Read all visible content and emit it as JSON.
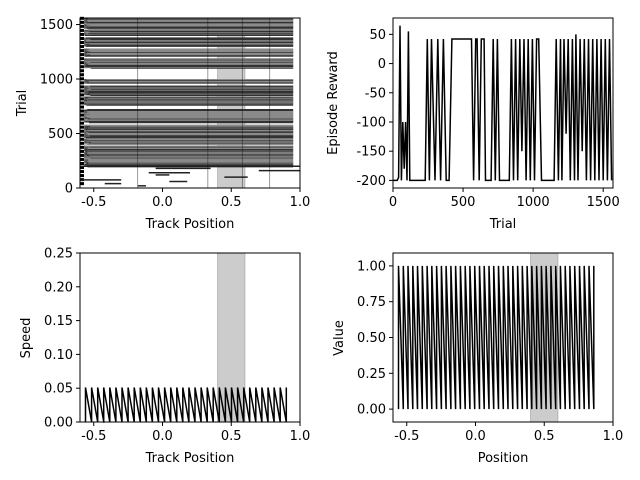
{
  "chart_data": [
    {
      "id": "trial-raster",
      "type": "heatmap",
      "xlabel": "Track Position",
      "ylabel": "Trial",
      "xlim": [
        -0.6,
        1.0
      ],
      "ylim": [
        0,
        1560
      ],
      "xticks": [
        "-0.5",
        "0.0",
        "0.5",
        "1.0"
      ],
      "xtick_values": [
        -0.5,
        0.0,
        0.5,
        1.0
      ],
      "yticks": [
        "0",
        "500",
        "1000",
        "1500"
      ],
      "ytick_values": [
        0,
        500,
        1000,
        1500
      ],
      "shaded_region": [
        0.4,
        0.6
      ],
      "grid": false,
      "dense_bands": [
        [
          195,
          225
        ],
        [
          230,
          265
        ],
        [
          270,
          330
        ],
        [
          335,
          390
        ],
        [
          400,
          450
        ],
        [
          455,
          580
        ],
        [
          600,
          720
        ],
        [
          760,
          840
        ],
        [
          850,
          940
        ],
        [
          960,
          1000
        ],
        [
          1100,
          1190
        ],
        [
          1210,
          1280
        ],
        [
          1300,
          1380
        ],
        [
          1400,
          1450
        ],
        [
          1460,
          1560
        ]
      ],
      "partial_trials": [
        {
          "trial": 20,
          "x": [
            -0.18,
            -0.12
          ]
        },
        {
          "trial": 40,
          "x": [
            -0.42,
            -0.3
          ]
        },
        {
          "trial": 60,
          "x": [
            0.05,
            0.18
          ]
        },
        {
          "trial": 75,
          "x": [
            -0.6,
            -0.3
          ]
        },
        {
          "trial": 100,
          "x": [
            0.45,
            0.62
          ]
        },
        {
          "trial": 120,
          "x": [
            -0.05,
            0.05
          ]
        },
        {
          "trial": 140,
          "x": [
            -0.1,
            0.2
          ]
        },
        {
          "trial": 160,
          "x": [
            0.7,
            1.0
          ]
        },
        {
          "trial": 180,
          "x": [
            -0.05,
            0.35
          ]
        },
        {
          "trial": 200,
          "x": [
            -0.6,
            1.0
          ]
        }
      ]
    },
    {
      "id": "episode-reward",
      "type": "line",
      "xlabel": "Trial",
      "ylabel": "Episode Reward",
      "xlim": [
        0,
        1570
      ],
      "ylim": [
        -213,
        78
      ],
      "xticks": [
        "0",
        "500",
        "1000",
        "1500"
      ],
      "xtick_values": [
        0,
        500,
        1000,
        1500
      ],
      "yticks": [
        "-200",
        "-150",
        "-100",
        "-50",
        "0",
        "50"
      ],
      "ytick_values": [
        -200,
        -150,
        -100,
        -50,
        0,
        50
      ],
      "grid": false,
      "series": [
        {
          "x": [
            0,
            30,
            40,
            50,
            60,
            70,
            80,
            90,
            100,
            110,
            120,
            130,
            160,
            180,
            200,
            230,
            245,
            260,
            275,
            300,
            320,
            340,
            360,
            380,
            400,
            420,
            440,
            560,
            575,
            590,
            600,
            615,
            630,
            650,
            660,
            700,
            715,
            730,
            745,
            760,
            830,
            845,
            860,
            875,
            890,
            905,
            920,
            935,
            950,
            965,
            980,
            995,
            1010,
            1025,
            1040,
            1060,
            1150,
            1165,
            1180,
            1195,
            1205,
            1220,
            1235,
            1250,
            1265,
            1280,
            1295,
            1305,
            1320,
            1335,
            1350,
            1365,
            1380,
            1395,
            1410,
            1425,
            1440,
            1455,
            1470,
            1485,
            1500,
            1515,
            1530,
            1545,
            1560
          ],
          "y": [
            -200,
            -200,
            -195,
            65,
            -200,
            -100,
            -180,
            -100,
            -200,
            55,
            -200,
            -200,
            -200,
            -200,
            -200,
            -200,
            42,
            -200,
            42,
            -200,
            42,
            -200,
            42,
            -200,
            -200,
            42,
            42,
            42,
            -200,
            42,
            42,
            -200,
            42,
            42,
            -200,
            -200,
            42,
            -200,
            42,
            -200,
            -200,
            42,
            -200,
            42,
            -200,
            42,
            -150,
            42,
            -200,
            42,
            -200,
            42,
            -200,
            42,
            42,
            -200,
            -200,
            42,
            -200,
            42,
            -200,
            42,
            -120,
            42,
            -200,
            42,
            -200,
            50,
            -200,
            42,
            -150,
            42,
            -200,
            42,
            -200,
            42,
            -200,
            42,
            -200,
            42,
            -200,
            42,
            -200,
            42,
            -200
          ]
        }
      ]
    },
    {
      "id": "speed",
      "type": "line",
      "xlabel": "Track Position",
      "ylabel": "Speed",
      "xlim": [
        -0.6,
        1.0
      ],
      "ylim": [
        0.0,
        0.25
      ],
      "xticks": [
        "-0.5",
        "0.0",
        "0.5",
        "1.0"
      ],
      "xtick_values": [
        -0.5,
        0.0,
        0.5,
        1.0
      ],
      "yticks": [
        "0.00",
        "0.05",
        "0.10",
        "0.15",
        "0.20",
        "0.25"
      ],
      "ytick_values": [
        0.0,
        0.05,
        0.1,
        0.15,
        0.2,
        0.25
      ],
      "shaded_region": [
        0.4,
        0.6
      ],
      "grid": false,
      "sawtooth": {
        "x_start": -0.56,
        "x_end": 0.9,
        "teeth": 33,
        "low": 0.0,
        "high": 0.051
      }
    },
    {
      "id": "value",
      "type": "line",
      "xlabel": "Position",
      "ylabel": "Value",
      "xlim": [
        -0.6,
        1.0
      ],
      "ylim": [
        -0.09,
        1.09
      ],
      "xticks": [
        "-0.5",
        "0.0",
        "0.5",
        "1.0"
      ],
      "xtick_values": [
        -0.5,
        0.0,
        0.5,
        1.0
      ],
      "yticks": [
        "0.00",
        "0.25",
        "0.50",
        "0.75",
        "1.00"
      ],
      "ytick_values": [
        0.0,
        0.25,
        0.5,
        0.75,
        1.0
      ],
      "shaded_region": [
        0.4,
        0.6
      ],
      "grid": false,
      "sawtooth": {
        "x_start": -0.56,
        "x_end": 0.86,
        "teeth": 41,
        "low": 0.0,
        "high": 1.0
      }
    }
  ]
}
